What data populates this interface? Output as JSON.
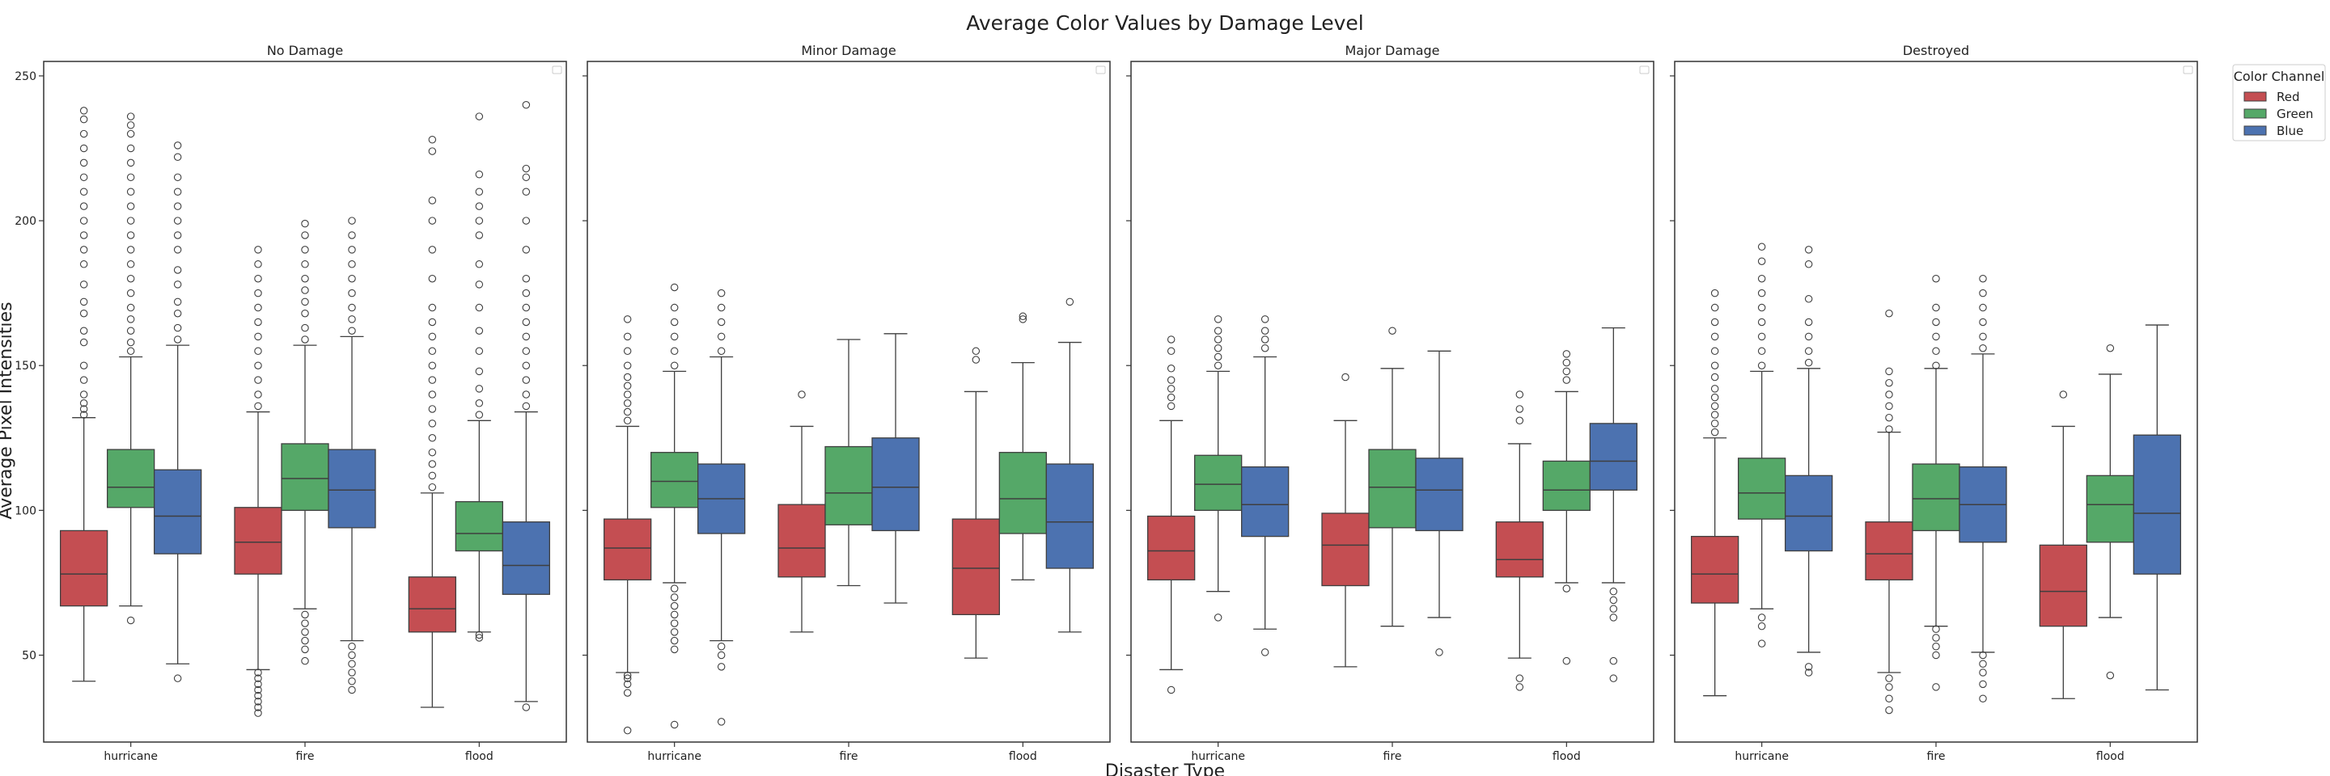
{
  "chart_data": {
    "type": "box",
    "title": "Average Color Values by Damage Level",
    "xlabel": "Disaster Type",
    "ylabel": "Average Pixel Intensities",
    "ylim": [
      20,
      255
    ],
    "yticks": [
      50,
      100,
      150,
      200,
      250
    ],
    "categories": [
      "hurricane",
      "fire",
      "flood"
    ],
    "legend": {
      "title": "Color Channel",
      "placement": "outside-top-right"
    },
    "series": [
      {
        "name": "Red",
        "color": "#c44e52"
      },
      {
        "name": "Green",
        "color": "#55a868"
      },
      {
        "name": "Blue",
        "color": "#4c72b0"
      }
    ],
    "panels": [
      {
        "title": "No Damage",
        "boxes": {
          "hurricane": {
            "Red": {
              "whislo": 41,
              "q1": 67,
              "median": 78,
              "q3": 93,
              "whishi": 132,
              "fliers": [
                133,
                135,
                137,
                140,
                145,
                150,
                158,
                162,
                168,
                172,
                178,
                185,
                190,
                195,
                200,
                205,
                210,
                215,
                220,
                225,
                230,
                235,
                238
              ]
            },
            "Green": {
              "whislo": 67,
              "q1": 101,
              "median": 108,
              "q3": 121,
              "whishi": 153,
              "fliers": [
                62,
                155,
                158,
                162,
                166,
                170,
                175,
                180,
                185,
                190,
                195,
                200,
                205,
                210,
                215,
                220,
                225,
                230,
                233,
                236
              ]
            },
            "Blue": {
              "whislo": 47,
              "q1": 85,
              "median": 98,
              "q3": 114,
              "whishi": 157,
              "fliers": [
                42,
                159,
                163,
                168,
                172,
                178,
                183,
                190,
                195,
                200,
                205,
                210,
                215,
                222,
                226
              ]
            }
          },
          "fire": {
            "Red": {
              "whislo": 45,
              "q1": 78,
              "median": 89,
              "q3": 101,
              "whishi": 134,
              "fliers": [
                30,
                32,
                34,
                36,
                38,
                40,
                42,
                44,
                136,
                140,
                145,
                150,
                155,
                160,
                165,
                170,
                175,
                180,
                185,
                190
              ]
            },
            "Green": {
              "whislo": 66,
              "q1": 100,
              "median": 111,
              "q3": 123,
              "whishi": 157,
              "fliers": [
                48,
                52,
                55,
                58,
                61,
                64,
                159,
                163,
                168,
                172,
                176,
                180,
                185,
                190,
                195,
                199
              ]
            },
            "Blue": {
              "whislo": 55,
              "q1": 94,
              "median": 107,
              "q3": 121,
              "whishi": 160,
              "fliers": [
                38,
                41,
                44,
                47,
                50,
                53,
                162,
                166,
                170,
                175,
                180,
                185,
                190,
                195,
                200
              ]
            }
          },
          "flood": {
            "Red": {
              "whislo": 32,
              "q1": 58,
              "median": 66,
              "q3": 77,
              "whishi": 106,
              "fliers": [
                108,
                112,
                116,
                120,
                125,
                130,
                135,
                140,
                145,
                150,
                155,
                160,
                165,
                170,
                180,
                190,
                200,
                207,
                224,
                228
              ]
            },
            "Green": {
              "whislo": 58,
              "q1": 86,
              "median": 92,
              "q3": 103,
              "whishi": 131,
              "fliers": [
                56,
                57,
                133,
                137,
                142,
                148,
                155,
                162,
                170,
                178,
                185,
                195,
                200,
                205,
                210,
                216,
                236
              ]
            },
            "Blue": {
              "whislo": 34,
              "q1": 71,
              "median": 81,
              "q3": 96,
              "whishi": 134,
              "fliers": [
                32,
                136,
                140,
                145,
                150,
                155,
                160,
                165,
                170,
                175,
                180,
                190,
                200,
                210,
                215,
                218,
                240
              ]
            }
          }
        }
      },
      {
        "title": "Minor Damage",
        "boxes": {
          "hurricane": {
            "Red": {
              "whislo": 44,
              "q1": 76,
              "median": 87,
              "q3": 97,
              "whishi": 129,
              "fliers": [
                24,
                37,
                40,
                42,
                43,
                131,
                134,
                137,
                140,
                143,
                146,
                150,
                155,
                160,
                166
              ]
            },
            "Green": {
              "whislo": 75,
              "q1": 101,
              "median": 110,
              "q3": 120,
              "whishi": 148,
              "fliers": [
                26,
                52,
                55,
                58,
                61,
                64,
                67,
                70,
                73,
                150,
                155,
                160,
                165,
                170,
                177
              ]
            },
            "Blue": {
              "whislo": 55,
              "q1": 92,
              "median": 104,
              "q3": 116,
              "whishi": 153,
              "fliers": [
                27,
                46,
                50,
                53,
                155,
                160,
                165,
                170,
                175
              ]
            }
          },
          "fire": {
            "Red": {
              "whislo": 58,
              "q1": 77,
              "median": 87,
              "q3": 102,
              "whishi": 129,
              "fliers": [
                140
              ]
            },
            "Green": {
              "whislo": 74,
              "q1": 95,
              "median": 106,
              "q3": 122,
              "whishi": 159,
              "fliers": []
            },
            "Blue": {
              "whislo": 68,
              "q1": 93,
              "median": 108,
              "q3": 125,
              "whishi": 161,
              "fliers": []
            }
          },
          "flood": {
            "Red": {
              "whislo": 49,
              "q1": 64,
              "median": 80,
              "q3": 97,
              "whishi": 141,
              "fliers": [
                152,
                155
              ]
            },
            "Green": {
              "whislo": 76,
              "q1": 92,
              "median": 104,
              "q3": 120,
              "whishi": 151,
              "fliers": [
                166,
                167
              ]
            },
            "Blue": {
              "whislo": 58,
              "q1": 80,
              "median": 96,
              "q3": 116,
              "whishi": 158,
              "fliers": [
                172
              ]
            }
          }
        }
      },
      {
        "title": "Major Damage",
        "boxes": {
          "hurricane": {
            "Red": {
              "whislo": 45,
              "q1": 76,
              "median": 86,
              "q3": 98,
              "whishi": 131,
              "fliers": [
                38,
                136,
                139,
                142,
                145,
                149,
                155,
                159
              ]
            },
            "Green": {
              "whislo": 72,
              "q1": 100,
              "median": 109,
              "q3": 119,
              "whishi": 148,
              "fliers": [
                63,
                150,
                153,
                156,
                159,
                162,
                166
              ]
            },
            "Blue": {
              "whislo": 59,
              "q1": 91,
              "median": 102,
              "q3": 115,
              "whishi": 153,
              "fliers": [
                51,
                156,
                159,
                162,
                166
              ]
            }
          },
          "fire": {
            "Red": {
              "whislo": 46,
              "q1": 74,
              "median": 88,
              "q3": 99,
              "whishi": 131,
              "fliers": [
                146
              ]
            },
            "Green": {
              "whislo": 60,
              "q1": 94,
              "median": 108,
              "q3": 121,
              "whishi": 149,
              "fliers": [
                162
              ]
            },
            "Blue": {
              "whislo": 63,
              "q1": 93,
              "median": 107,
              "q3": 118,
              "whishi": 155,
              "fliers": [
                51
              ]
            }
          },
          "flood": {
            "Red": {
              "whislo": 49,
              "q1": 77,
              "median": 83,
              "q3": 96,
              "whishi": 123,
              "fliers": [
                39,
                42,
                131,
                135,
                140
              ]
            },
            "Green": {
              "whislo": 75,
              "q1": 100,
              "median": 107,
              "q3": 117,
              "whishi": 141,
              "fliers": [
                48,
                73,
                145,
                148,
                151,
                154
              ]
            },
            "Blue": {
              "whislo": 75,
              "q1": 107,
              "median": 117,
              "q3": 130,
              "whishi": 163,
              "fliers": [
                42,
                48,
                63,
                66,
                69,
                72
              ]
            }
          }
        }
      },
      {
        "title": "Destroyed",
        "boxes": {
          "hurricane": {
            "Red": {
              "whislo": 36,
              "q1": 68,
              "median": 78,
              "q3": 91,
              "whishi": 125,
              "fliers": [
                127,
                130,
                133,
                136,
                139,
                142,
                146,
                150,
                155,
                160,
                165,
                170,
                175
              ]
            },
            "Green": {
              "whislo": 66,
              "q1": 97,
              "median": 106,
              "q3": 118,
              "whishi": 148,
              "fliers": [
                54,
                60,
                63,
                150,
                155,
                160,
                165,
                170,
                175,
                180,
                186,
                191
              ]
            },
            "Blue": {
              "whislo": 51,
              "q1": 86,
              "median": 98,
              "q3": 112,
              "whishi": 149,
              "fliers": [
                44,
                46,
                151,
                155,
                160,
                165,
                173,
                185,
                190
              ]
            }
          },
          "fire": {
            "Red": {
              "whislo": 44,
              "q1": 76,
              "median": 85,
              "q3": 96,
              "whishi": 127,
              "fliers": [
                31,
                35,
                39,
                42,
                128,
                132,
                136,
                140,
                144,
                148,
                168
              ]
            },
            "Green": {
              "whislo": 60,
              "q1": 93,
              "median": 104,
              "q3": 116,
              "whishi": 149,
              "fliers": [
                39,
                50,
                53,
                56,
                59,
                150,
                155,
                160,
                165,
                170,
                180
              ]
            },
            "Blue": {
              "whislo": 51,
              "q1": 89,
              "median": 102,
              "q3": 115,
              "whishi": 154,
              "fliers": [
                35,
                40,
                44,
                47,
                50,
                156,
                160,
                165,
                170,
                175,
                180
              ]
            }
          },
          "flood": {
            "Red": {
              "whislo": 35,
              "q1": 60,
              "median": 72,
              "q3": 88,
              "whishi": 129,
              "fliers": [
                140
              ]
            },
            "Green": {
              "whislo": 63,
              "q1": 89,
              "median": 102,
              "q3": 112,
              "whishi": 147,
              "fliers": [
                43,
                156
              ]
            },
            "Blue": {
              "whislo": 38,
              "q1": 78,
              "median": 99,
              "q3": 126,
              "whishi": 164,
              "fliers": []
            }
          }
        }
      }
    ]
  }
}
